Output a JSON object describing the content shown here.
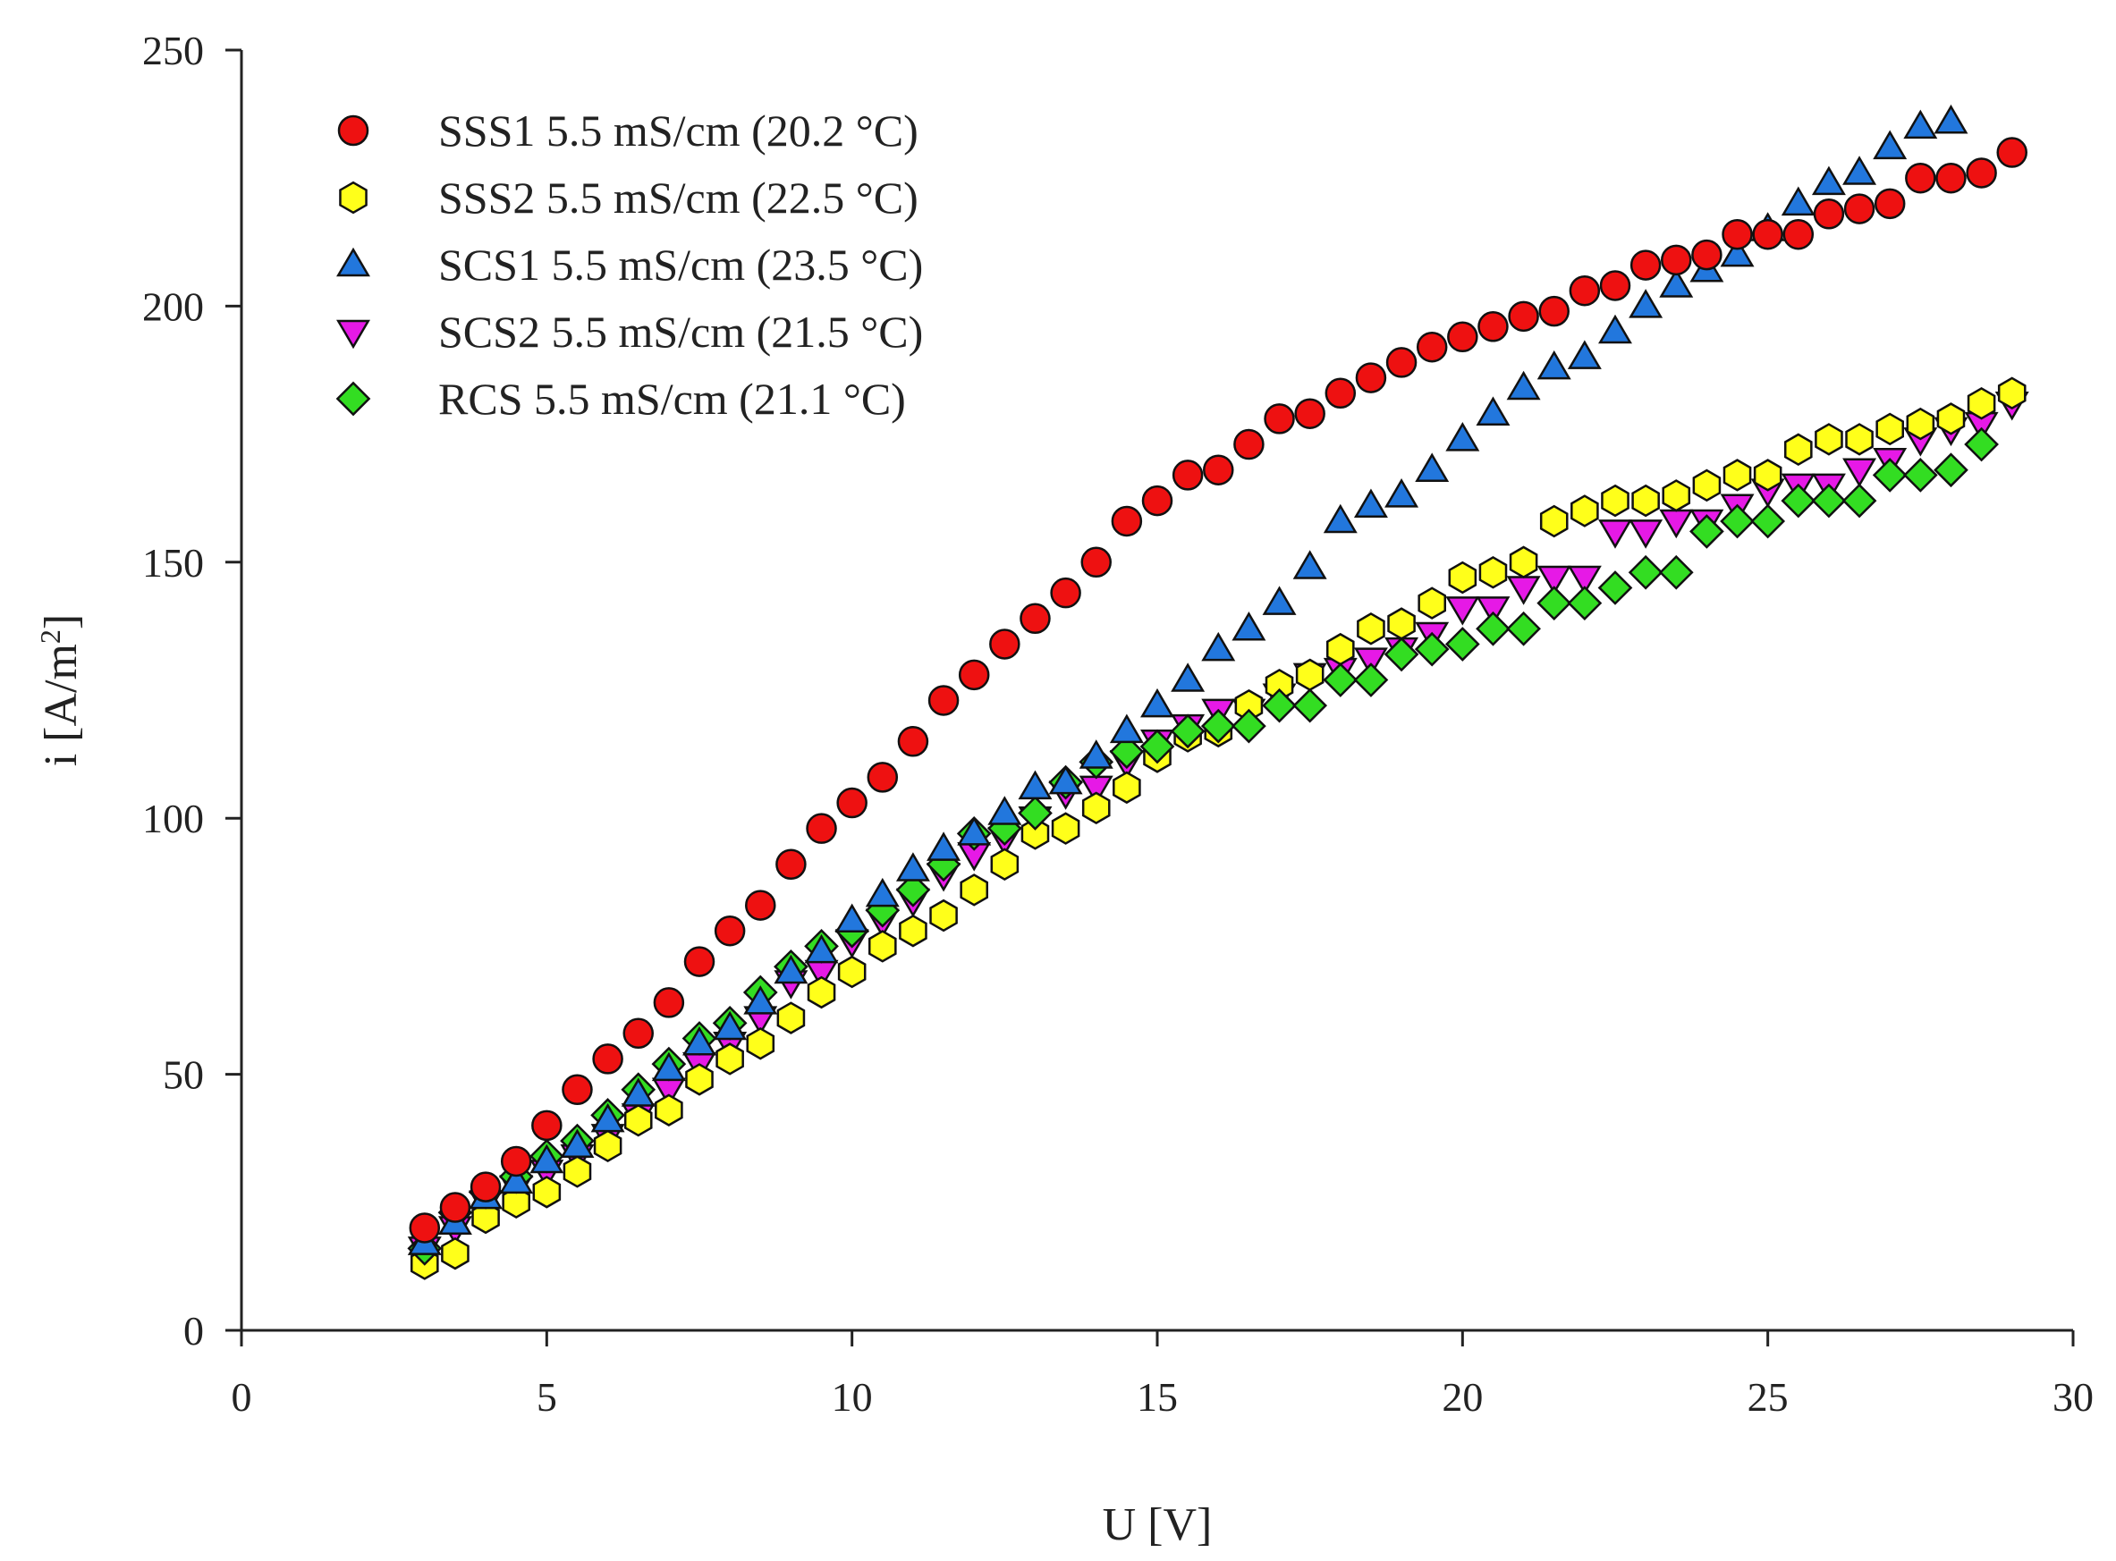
{
  "chart_data": {
    "type": "scatter",
    "title": "",
    "xlabel": "U [V]",
    "ylabel_main": "i [A/m",
    "ylabel_sup": "2",
    "ylabel_close": "]",
    "xlim": [
      0,
      30
    ],
    "ylim": [
      0,
      250
    ],
    "xticks": [
      0,
      5,
      10,
      15,
      20,
      25,
      30
    ],
    "yticks": [
      0,
      50,
      100,
      150,
      200,
      250
    ],
    "grid": false,
    "legend_position": "top-left",
    "series": [
      {
        "name": "SCS2 5.5 mS/cm (21.5 °C)",
        "marker": "triangle-down",
        "color": "#e619e6",
        "x": [
          3,
          3.5,
          4,
          4.5,
          5,
          5.5,
          6,
          6.5,
          7,
          7.5,
          8,
          8.5,
          9,
          9.5,
          10,
          10.5,
          11,
          11.5,
          12,
          12.5,
          13,
          13.5,
          14,
          14.5,
          15,
          15.5,
          16,
          16.5,
          17,
          17.5,
          18,
          18.5,
          19,
          19.5,
          20,
          20.5,
          21,
          21.5,
          22,
          22.5,
          23,
          23.5,
          24,
          24.5,
          25,
          25.5,
          26,
          26.5,
          27,
          27.5,
          28,
          28.5,
          29
        ],
        "y": [
          16,
          20,
          25,
          28,
          31,
          34,
          38,
          42,
          47,
          52,
          56,
          61,
          68,
          70,
          76,
          80,
          84,
          89,
          93,
          96,
          100,
          105,
          106,
          111,
          115,
          118,
          121,
          121,
          124,
          128,
          129,
          131,
          133,
          136,
          141,
          141,
          145,
          147,
          147,
          156,
          156,
          158,
          158,
          161,
          164,
          165,
          165,
          168,
          170,
          174,
          176,
          177,
          181
        ]
      },
      {
        "name": "SSS2 5.5 mS/cm (22.5 °C)",
        "marker": "hexagon",
        "color": "#ffff1a",
        "x": [
          3,
          3.5,
          4,
          4.5,
          5,
          5.5,
          6,
          6.5,
          7,
          7.5,
          8,
          8.5,
          9,
          9.5,
          10,
          10.5,
          11,
          11.5,
          12,
          12.5,
          13,
          13.5,
          14,
          14.5,
          15,
          15.5,
          16,
          16.5,
          17,
          17.5,
          18,
          18.5,
          19,
          19.5,
          20,
          20.5,
          21,
          21.5,
          22,
          22.5,
          23,
          23.5,
          24,
          24.5,
          25,
          25.5,
          26,
          26.5,
          27,
          27.5,
          28,
          28.5,
          29
        ],
        "y": [
          13,
          15,
          22,
          25,
          27,
          31,
          36,
          41,
          43,
          49,
          53,
          56,
          61,
          66,
          70,
          75,
          78,
          81,
          86,
          91,
          97,
          98,
          102,
          106,
          112,
          116,
          117,
          122,
          126,
          128,
          133,
          137,
          138,
          142,
          147,
          148,
          150,
          158,
          160,
          162,
          162,
          163,
          165,
          167,
          167,
          172,
          174,
          174,
          176,
          177,
          178,
          181,
          183
        ]
      },
      {
        "name": "RCS 5.5 mS/cm (21.1 °C)",
        "marker": "diamond",
        "color": "#33dd22",
        "x": [
          3,
          3.5,
          4,
          4.5,
          5,
          5.5,
          6,
          6.5,
          7,
          7.5,
          8,
          8.5,
          9,
          9.5,
          10,
          10.5,
          11,
          11.5,
          12,
          12.5,
          13,
          13.5,
          14,
          14.5,
          15,
          15.5,
          16,
          16.5,
          17,
          17.5,
          18,
          18.5,
          19,
          19.5,
          20,
          20.5,
          21,
          21.5,
          22,
          22.5,
          23,
          23.5,
          24,
          24.5,
          25,
          25.5,
          26,
          26.5,
          27,
          27.5,
          28,
          28.5
        ],
        "y": [
          16,
          23,
          27,
          30,
          34,
          37,
          42,
          47,
          52,
          57,
          60,
          66,
          71,
          75,
          78,
          82,
          86,
          91,
          97,
          98,
          101,
          107,
          111,
          113,
          114,
          117,
          118,
          118,
          122,
          122,
          127,
          127,
          132,
          133,
          134,
          137,
          137,
          142,
          142,
          145,
          148,
          148,
          156,
          158,
          158,
          162,
          162,
          162,
          167,
          167,
          168,
          173
        ]
      },
      {
        "name": "SCS1 5.5 mS/cm (23.5 °C)",
        "marker": "triangle-up",
        "color": "#2277dd",
        "x": [
          3,
          3.5,
          4,
          4.5,
          5,
          5.5,
          6,
          6.5,
          7,
          7.5,
          8,
          8.5,
          9,
          9.5,
          10,
          10.5,
          11,
          11.5,
          12,
          12.5,
          13,
          13.5,
          14,
          14.5,
          15,
          15.5,
          16,
          16.5,
          17,
          17.5,
          18,
          18.5,
          19,
          19.5,
          20,
          20.5,
          21,
          21.5,
          22,
          22.5,
          23,
          23.5,
          24,
          24.5,
          25,
          25.5,
          26,
          26.5,
          27,
          27.5,
          28
        ],
        "y": [
          17,
          21,
          26,
          29,
          33,
          36,
          41,
          46,
          51,
          56,
          59,
          64,
          70,
          74,
          80,
          85,
          90,
          94,
          97,
          101,
          106,
          107,
          112,
          117,
          122,
          127,
          133,
          137,
          142,
          149,
          158,
          161,
          163,
          168,
          174,
          179,
          184,
          188,
          190,
          195,
          200,
          204,
          207,
          210,
          215,
          220,
          224,
          226,
          231,
          235,
          236
        ]
      },
      {
        "name": "SSS1 5.5 mS/cm (20.2 °C)",
        "marker": "circle",
        "color": "#ee1111",
        "x": [
          3,
          3.5,
          4,
          4.5,
          5,
          5.5,
          6,
          6.5,
          7,
          7.5,
          8,
          8.5,
          9,
          9.5,
          10,
          10.5,
          11,
          11.5,
          12,
          12.5,
          13,
          13.5,
          14,
          14.5,
          15,
          15.5,
          16,
          16.5,
          17,
          17.5,
          18,
          18.5,
          19,
          19.5,
          20,
          20.5,
          21,
          21.5,
          22,
          22.5,
          23,
          23.5,
          24,
          24.5,
          25,
          25.5,
          26,
          26.5,
          27,
          27.5,
          28,
          28.5,
          29
        ],
        "y": [
          20,
          24,
          28,
          33,
          40,
          47,
          53,
          58,
          64,
          72,
          78,
          83,
          91,
          98,
          103,
          108,
          115,
          123,
          128,
          134,
          139,
          144,
          150,
          158,
          162,
          167,
          168,
          173,
          178,
          179,
          183,
          186,
          189,
          192,
          194,
          196,
          198,
          199,
          203,
          204,
          208,
          209,
          210,
          214,
          214,
          214,
          218,
          219,
          220,
          225,
          225,
          226,
          230
        ]
      }
    ],
    "legend_order": [
      4,
      1,
      3,
      0,
      2
    ]
  }
}
